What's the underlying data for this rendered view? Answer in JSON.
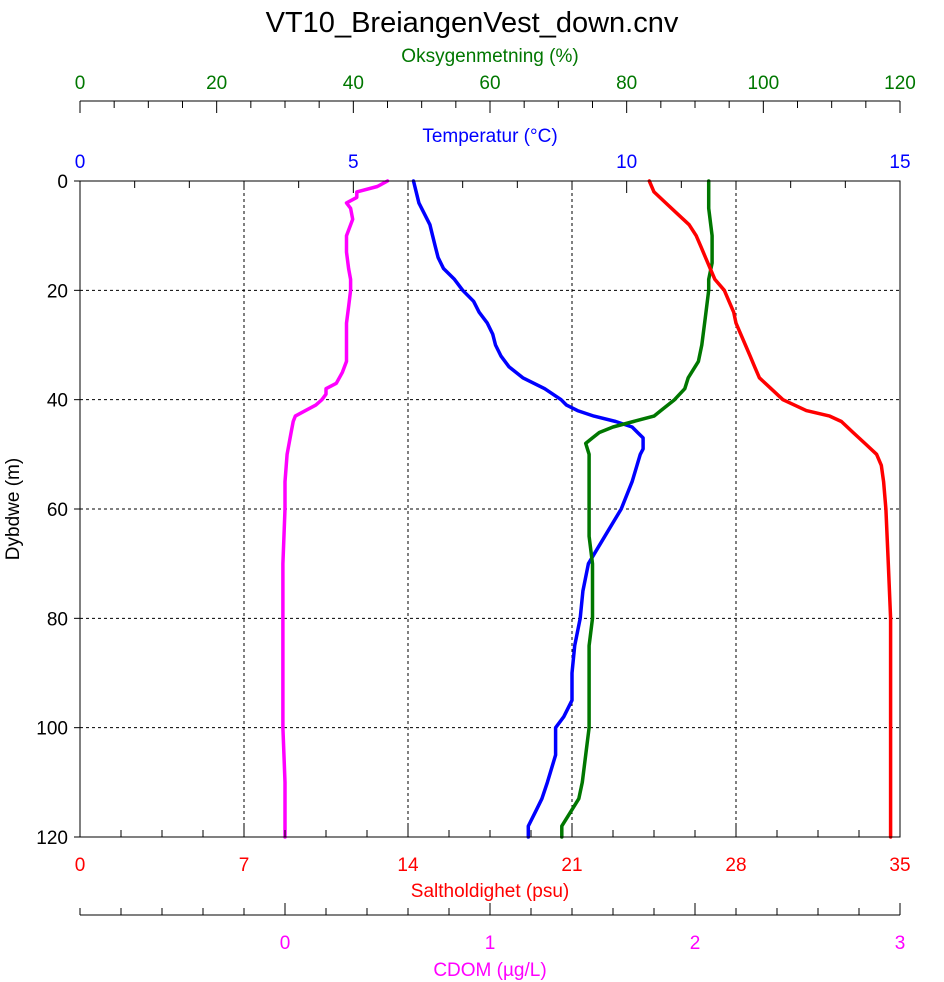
{
  "chart_data": {
    "type": "line",
    "title": "VT10_BreiangenVest_down.cnv",
    "grid": true,
    "y_axis": {
      "label": "Dybdwe (m)",
      "range": [
        0,
        120
      ],
      "inverted": true,
      "ticks": [
        0,
        20,
        40,
        60,
        80,
        100,
        120
      ]
    },
    "x_axes": [
      {
        "id": "oxygen",
        "label": "Oksygenmetning (%)",
        "position": "top",
        "color": "#007700",
        "range": [
          0,
          120
        ],
        "major_ticks": [
          0,
          20,
          40,
          60,
          80,
          100,
          120
        ],
        "minor_step": 5
      },
      {
        "id": "temp",
        "label": "Temperatur (°C)",
        "position": "top",
        "color": "#0000ff",
        "range": [
          0,
          15
        ],
        "major_ticks": [
          0,
          5,
          10,
          15
        ],
        "minor_step": 1
      },
      {
        "id": "salinity",
        "label": "Saltholdighet (psu)",
        "position": "bottom",
        "color": "#ff0000",
        "range": [
          0,
          35
        ],
        "major_ticks": [
          0,
          7,
          14,
          21,
          28,
          35
        ],
        "minor_step": 1.75
      },
      {
        "id": "cdom",
        "label": "CDOM (µg/L)",
        "position": "bottom",
        "color": "#ff00ff",
        "range": [
          -1,
          3
        ],
        "major_ticks": [
          0,
          1,
          2,
          3
        ],
        "minor_step": 0.2
      }
    ],
    "series": [
      {
        "axis": "cdom",
        "color": "#ff00ff",
        "points": [
          [
            0,
            0.5
          ],
          [
            1,
            0.45
          ],
          [
            2,
            0.35
          ],
          [
            3,
            0.35
          ],
          [
            4,
            0.3
          ],
          [
            5,
            0.32
          ],
          [
            7,
            0.33
          ],
          [
            10,
            0.3
          ],
          [
            13,
            0.3
          ],
          [
            16,
            0.31
          ],
          [
            18,
            0.32
          ],
          [
            20,
            0.32
          ],
          [
            23,
            0.31
          ],
          [
            26,
            0.3
          ],
          [
            30,
            0.3
          ],
          [
            33,
            0.3
          ],
          [
            35,
            0.28
          ],
          [
            37,
            0.25
          ],
          [
            38,
            0.2
          ],
          [
            39,
            0.2
          ],
          [
            40,
            0.18
          ],
          [
            41,
            0.15
          ],
          [
            42,
            0.1
          ],
          [
            43,
            0.05
          ],
          [
            44,
            0.04
          ],
          [
            46,
            0.03
          ],
          [
            48,
            0.02
          ],
          [
            50,
            0.01
          ],
          [
            55,
            0.0
          ],
          [
            60,
            0.0
          ],
          [
            70,
            -0.01
          ],
          [
            80,
            -0.01
          ],
          [
            90,
            -0.01
          ],
          [
            100,
            -0.01
          ],
          [
            110,
            0.0
          ],
          [
            120,
            0.0
          ]
        ]
      },
      {
        "axis": "temp",
        "color": "#0000ff",
        "points": [
          [
            0,
            6.1
          ],
          [
            2,
            6.15
          ],
          [
            4,
            6.2
          ],
          [
            6,
            6.3
          ],
          [
            8,
            6.4
          ],
          [
            10,
            6.45
          ],
          [
            12,
            6.5
          ],
          [
            14,
            6.55
          ],
          [
            16,
            6.65
          ],
          [
            18,
            6.85
          ],
          [
            20,
            7.0
          ],
          [
            22,
            7.2
          ],
          [
            24,
            7.3
          ],
          [
            26,
            7.45
          ],
          [
            28,
            7.55
          ],
          [
            30,
            7.6
          ],
          [
            32,
            7.7
          ],
          [
            34,
            7.85
          ],
          [
            36,
            8.1
          ],
          [
            38,
            8.5
          ],
          [
            40,
            8.8
          ],
          [
            41,
            8.9
          ],
          [
            42,
            9.1
          ],
          [
            43,
            9.4
          ],
          [
            44,
            9.8
          ],
          [
            45,
            10.1
          ],
          [
            46,
            10.2
          ],
          [
            47,
            10.3
          ],
          [
            48,
            10.3
          ],
          [
            49,
            10.3
          ],
          [
            50,
            10.25
          ],
          [
            55,
            10.1
          ],
          [
            60,
            9.9
          ],
          [
            65,
            9.6
          ],
          [
            70,
            9.3
          ],
          [
            75,
            9.2
          ],
          [
            80,
            9.15
          ],
          [
            85,
            9.05
          ],
          [
            90,
            9.0
          ],
          [
            95,
            9.0
          ],
          [
            98,
            8.85
          ],
          [
            100,
            8.7
          ],
          [
            105,
            8.7
          ],
          [
            110,
            8.55
          ],
          [
            113,
            8.45
          ],
          [
            115,
            8.35
          ],
          [
            118,
            8.2
          ],
          [
            120,
            8.2
          ]
        ]
      },
      {
        "axis": "oxygen",
        "color": "#007700",
        "points": [
          [
            0,
            92
          ],
          [
            5,
            92
          ],
          [
            10,
            92.5
          ],
          [
            15,
            92.5
          ],
          [
            18,
            92
          ],
          [
            20,
            92
          ],
          [
            25,
            91.5
          ],
          [
            30,
            91
          ],
          [
            33,
            90.5
          ],
          [
            36,
            89
          ],
          [
            38,
            88.5
          ],
          [
            40,
            87
          ],
          [
            42,
            85
          ],
          [
            43,
            84
          ],
          [
            44,
            81
          ],
          [
            45,
            78
          ],
          [
            46,
            76
          ],
          [
            47,
            75
          ],
          [
            48,
            74
          ],
          [
            50,
            74.5
          ],
          [
            55,
            74.5
          ],
          [
            60,
            74.5
          ],
          [
            65,
            74.5
          ],
          [
            70,
            75
          ],
          [
            75,
            75
          ],
          [
            80,
            75
          ],
          [
            85,
            74.5
          ],
          [
            90,
            74.5
          ],
          [
            95,
            74.5
          ],
          [
            100,
            74.5
          ],
          [
            105,
            74
          ],
          [
            110,
            73.5
          ],
          [
            113,
            73
          ],
          [
            115,
            72
          ],
          [
            118,
            70.5
          ],
          [
            120,
            70.5
          ]
        ]
      },
      {
        "axis": "salinity",
        "color": "#ff0000",
        "points": [
          [
            0,
            24.3
          ],
          [
            2,
            24.5
          ],
          [
            4,
            25.0
          ],
          [
            6,
            25.5
          ],
          [
            8,
            26.0
          ],
          [
            10,
            26.3
          ],
          [
            12,
            26.5
          ],
          [
            14,
            26.7
          ],
          [
            16,
            26.9
          ],
          [
            18,
            27.1
          ],
          [
            20,
            27.5
          ],
          [
            22,
            27.7
          ],
          [
            24,
            27.9
          ],
          [
            26,
            28.0
          ],
          [
            28,
            28.2
          ],
          [
            30,
            28.4
          ],
          [
            32,
            28.6
          ],
          [
            34,
            28.8
          ],
          [
            36,
            29.0
          ],
          [
            38,
            29.5
          ],
          [
            40,
            30.0
          ],
          [
            42,
            31.0
          ],
          [
            43,
            32.0
          ],
          [
            44,
            32.5
          ],
          [
            46,
            33.0
          ],
          [
            48,
            33.5
          ],
          [
            50,
            34.0
          ],
          [
            52,
            34.2
          ],
          [
            55,
            34.3
          ],
          [
            60,
            34.4
          ],
          [
            70,
            34.5
          ],
          [
            80,
            34.6
          ],
          [
            90,
            34.6
          ],
          [
            100,
            34.6
          ],
          [
            110,
            34.6
          ],
          [
            120,
            34.6
          ]
        ]
      }
    ]
  }
}
